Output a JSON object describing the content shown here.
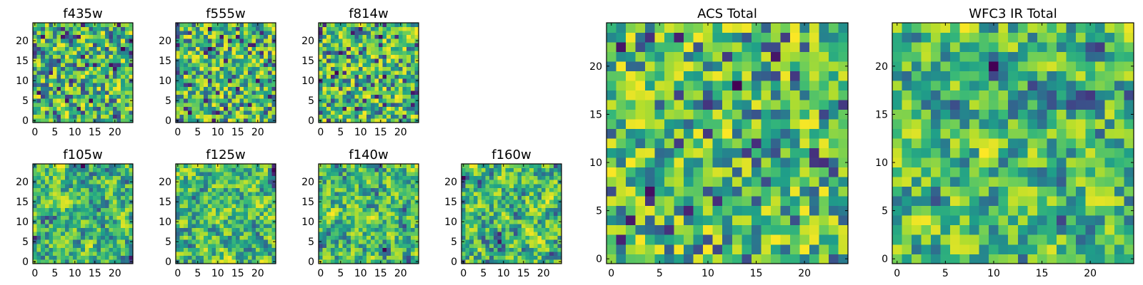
{
  "figure": {
    "colormap": "viridis",
    "colors": {
      "background": "#ffffff",
      "frame": "#000000",
      "low": "#440154",
      "high": "#fde725"
    }
  },
  "chart_data": [
    {
      "type": "heatmap",
      "title": "f435w",
      "x_ticks": [
        "0",
        "5",
        "10",
        "15",
        "20"
      ],
      "y_ticks": [
        "0",
        "5",
        "10",
        "15",
        "20"
      ],
      "xlim": [
        -0.5,
        24.5
      ],
      "ylim": [
        -0.5,
        24.5
      ],
      "grid": false,
      "pixels": [
        25,
        25
      ],
      "smoothness": 0,
      "seed": 11
    },
    {
      "type": "heatmap",
      "title": "f555w",
      "x_ticks": [
        "0",
        "5",
        "10",
        "15",
        "20"
      ],
      "y_ticks": [
        "0",
        "5",
        "10",
        "15",
        "20"
      ],
      "xlim": [
        -0.5,
        24.5
      ],
      "ylim": [
        -0.5,
        24.5
      ],
      "grid": false,
      "pixels": [
        25,
        25
      ],
      "smoothness": 0,
      "seed": 23
    },
    {
      "type": "heatmap",
      "title": "f814w",
      "x_ticks": [
        "0",
        "5",
        "10",
        "15",
        "20"
      ],
      "y_ticks": [
        "0",
        "5",
        "10",
        "15",
        "20"
      ],
      "xlim": [
        -0.5,
        24.5
      ],
      "ylim": [
        -0.5,
        24.5
      ],
      "grid": false,
      "pixels": [
        25,
        25
      ],
      "smoothness": 0,
      "seed": 37
    },
    {
      "type": "heatmap",
      "title": "f105w",
      "x_ticks": [
        "0",
        "5",
        "10",
        "15",
        "20"
      ],
      "y_ticks": [
        "0",
        "5",
        "10",
        "15",
        "20"
      ],
      "xlim": [
        -0.5,
        24.5
      ],
      "ylim": [
        -0.5,
        24.5
      ],
      "grid": false,
      "pixels": [
        25,
        25
      ],
      "smoothness": 1,
      "seed": 41
    },
    {
      "type": "heatmap",
      "title": "f125w",
      "x_ticks": [
        "0",
        "5",
        "10",
        "15",
        "20"
      ],
      "y_ticks": [
        "0",
        "5",
        "10",
        "15",
        "20"
      ],
      "xlim": [
        -0.5,
        24.5
      ],
      "ylim": [
        -0.5,
        24.5
      ],
      "grid": false,
      "pixels": [
        25,
        25
      ],
      "smoothness": 1,
      "seed": 53
    },
    {
      "type": "heatmap",
      "title": "f140w",
      "x_ticks": [
        "0",
        "5",
        "10",
        "15",
        "20"
      ],
      "y_ticks": [
        "0",
        "5",
        "10",
        "15",
        "20"
      ],
      "xlim": [
        -0.5,
        24.5
      ],
      "ylim": [
        -0.5,
        24.5
      ],
      "grid": false,
      "pixels": [
        25,
        25
      ],
      "smoothness": 1,
      "seed": 67
    },
    {
      "type": "heatmap",
      "title": "f160w",
      "x_ticks": [
        "0",
        "5",
        "10",
        "15",
        "20"
      ],
      "y_ticks": [
        "0",
        "5",
        "10",
        "15",
        "20"
      ],
      "xlim": [
        -0.5,
        24.5
      ],
      "ylim": [
        -0.5,
        24.5
      ],
      "grid": false,
      "pixels": [
        25,
        25
      ],
      "smoothness": 1,
      "seed": 79
    },
    {
      "type": "heatmap",
      "title": "ACS Total",
      "x_ticks": [
        "0",
        "5",
        "10",
        "15",
        "20"
      ],
      "y_ticks": [
        "0",
        "5",
        "10",
        "15",
        "20"
      ],
      "xlim": [
        -0.5,
        24.5
      ],
      "ylim": [
        -0.5,
        24.5
      ],
      "grid": false,
      "pixels": [
        25,
        25
      ],
      "smoothness": 0,
      "seed": 83
    },
    {
      "type": "heatmap",
      "title": "WFC3 IR Total",
      "x_ticks": [
        "0",
        "5",
        "10",
        "15",
        "20"
      ],
      "y_ticks": [
        "0",
        "5",
        "10",
        "15",
        "20"
      ],
      "xlim": [
        -0.5,
        24.5
      ],
      "ylim": [
        -0.5,
        24.5
      ],
      "grid": false,
      "pixels": [
        25,
        25
      ],
      "smoothness": 1,
      "seed": 97
    }
  ]
}
